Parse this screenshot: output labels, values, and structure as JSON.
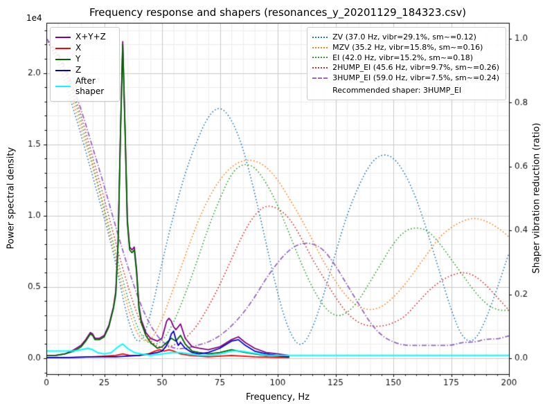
{
  "chart_data": {
    "type": "line",
    "title": "Frequency response and shapers (resonances_y_20201129_184323.csv)",
    "xlabel": "Frequency, Hz",
    "ylabel_left": "Power spectral density",
    "ylabel_right": "Shaper vibration reduction (ratio)",
    "offset_text": "1e4",
    "recommended_text": "Recommended shaper: 3HUMP_EI",
    "legend_position": {
      "psd": "upper left",
      "shapers": "upper right"
    },
    "grid": true,
    "axes": {
      "x": {
        "lim": [
          0,
          200
        ],
        "ticks": [
          0,
          25,
          50,
          75,
          100,
          125,
          150,
          175,
          200
        ],
        "tick_labels": [
          "0",
          "25",
          "50",
          "75",
          "100",
          "125",
          "150",
          "175",
          "200"
        ],
        "minor_step": 5
      },
      "y_left": {
        "lim": [
          -0.112,
          2.352
        ],
        "unit_multiplier": "1e4",
        "ticks": [
          0,
          0.5,
          1,
          1.5,
          2
        ],
        "tick_labels": [
          "0.0",
          "0.5",
          "1.0",
          "1.5",
          "2.0"
        ],
        "minor_step": 0.1
      },
      "y_right": {
        "lim": [
          -0.05,
          1.05
        ],
        "ticks": [
          0,
          0.2,
          0.4,
          0.6,
          0.8,
          1
        ],
        "tick_labels": [
          "0.0",
          "0.2",
          "0.4",
          "0.6",
          "0.8",
          "1.0"
        ]
      }
    },
    "psd_series": [
      {
        "name": "X+Y+Z",
        "color": "#800080",
        "x": [
          0,
          4,
          8,
          12,
          15,
          17,
          19,
          20,
          21,
          23,
          25,
          27,
          29,
          30,
          31,
          32,
          33,
          34,
          35,
          36,
          37,
          38,
          39,
          40,
          41,
          43,
          45,
          48,
          50,
          52,
          53,
          54,
          55,
          56,
          57,
          58,
          60,
          63,
          66,
          70,
          75,
          80,
          83,
          86,
          90,
          95,
          100,
          105
        ],
        "y": [
          0.02,
          0.02,
          0.03,
          0.06,
          0.09,
          0.13,
          0.18,
          0.17,
          0.14,
          0.14,
          0.16,
          0.23,
          0.36,
          0.47,
          0.82,
          1.57,
          2.22,
          1.62,
          0.97,
          0.78,
          0.76,
          0.78,
          0.62,
          0.37,
          0.27,
          0.18,
          0.14,
          0.12,
          0.14,
          0.26,
          0.28,
          0.26,
          0.22,
          0.2,
          0.22,
          0.24,
          0.14,
          0.08,
          0.07,
          0.06,
          0.08,
          0.13,
          0.15,
          0.11,
          0.07,
          0.04,
          0.03,
          0.02
        ]
      },
      {
        "name": "X",
        "color": "#ff0000",
        "x": [
          0,
          10,
          20,
          30,
          33,
          36,
          40,
          44,
          47,
          49,
          51,
          53,
          55,
          58,
          62,
          66,
          70,
          75,
          80,
          85,
          90,
          95,
          100,
          105
        ],
        "y": [
          0.005,
          0.005,
          0.01,
          0.02,
          0.03,
          0.02,
          0.02,
          0.03,
          0.05,
          0.06,
          0.05,
          0.06,
          0.05,
          0.03,
          0.02,
          0.015,
          0.01,
          0.015,
          0.02,
          0.015,
          0.01,
          0.008,
          0.005,
          0.005
        ]
      },
      {
        "name": "Y",
        "color": "#006400",
        "x": [
          0,
          4,
          8,
          12,
          15,
          17,
          19,
          20,
          21,
          23,
          25,
          27,
          29,
          30,
          31,
          32,
          33,
          34,
          35,
          36,
          37,
          38,
          39,
          40,
          41,
          43,
          45,
          48,
          50,
          52,
          54,
          56,
          58,
          60,
          63,
          66,
          70,
          75,
          80,
          83,
          86,
          90,
          95,
          100,
          105
        ],
        "y": [
          0.02,
          0.02,
          0.03,
          0.05,
          0.08,
          0.12,
          0.17,
          0.16,
          0.13,
          0.13,
          0.15,
          0.22,
          0.35,
          0.45,
          0.8,
          1.55,
          2.2,
          1.6,
          0.95,
          0.76,
          0.74,
          0.76,
          0.6,
          0.35,
          0.25,
          0.16,
          0.11,
          0.07,
          0.08,
          0.11,
          0.14,
          0.12,
          0.16,
          0.1,
          0.05,
          0.04,
          0.03,
          0.04,
          0.06,
          0.05,
          0.04,
          0.03,
          0.02,
          0.015,
          0.01
        ]
      },
      {
        "name": "Z",
        "color": "#0000cd",
        "x": [
          0,
          10,
          20,
          30,
          35,
          40,
          45,
          48,
          50,
          52,
          53,
          54,
          55,
          56,
          57,
          58,
          60,
          63,
          66,
          70,
          75,
          80,
          83,
          86,
          90,
          95,
          100,
          105
        ],
        "y": [
          0.005,
          0.005,
          0.01,
          0.01,
          0.015,
          0.02,
          0.03,
          0.04,
          0.05,
          0.09,
          0.12,
          0.17,
          0.19,
          0.13,
          0.09,
          0.11,
          0.07,
          0.04,
          0.03,
          0.04,
          0.07,
          0.12,
          0.13,
          0.09,
          0.05,
          0.03,
          0.02,
          0.01
        ]
      },
      {
        "name": "After shaper",
        "color": "#00ffff",
        "x": [
          0,
          4,
          8,
          12,
          15,
          18,
          20,
          22,
          25,
          28,
          31,
          33,
          35,
          38,
          41,
          45,
          50,
          54,
          58,
          62,
          66,
          70,
          75,
          80,
          84,
          88,
          92,
          96,
          100,
          110,
          120,
          140,
          160,
          180,
          200
        ],
        "y": [
          0.05,
          0.05,
          0.05,
          0.05,
          0.06,
          0.07,
          0.06,
          0.04,
          0.03,
          0.04,
          0.08,
          0.1,
          0.07,
          0.04,
          0.03,
          0.02,
          0.03,
          0.04,
          0.04,
          0.03,
          0.02,
          0.02,
          0.03,
          0.05,
          0.05,
          0.04,
          0.03,
          0.02,
          0.02,
          0.02,
          0.02,
          0.02,
          0.02,
          0.02,
          0.02
        ]
      }
    ],
    "shaper_series": [
      {
        "name": "ZV",
        "freq_hz": 37.0,
        "vibr_pct": 29.1,
        "smoothing": 0.12,
        "label": "ZV (37.0 Hz, vibr=29.1%, sm~=0.12)",
        "color": "#1f77b4",
        "dash": "dotted",
        "x_step": 5,
        "values": [
          1.0,
          0.93,
          0.82,
          0.7,
          0.57,
          0.44,
          0.3,
          0.12,
          0.03,
          0.13,
          0.3,
          0.45,
          0.58,
          0.68,
          0.76,
          0.79,
          0.75,
          0.66,
          0.52,
          0.36,
          0.2,
          0.08,
          0.03,
          0.09,
          0.2,
          0.33,
          0.45,
          0.54,
          0.61,
          0.64,
          0.63,
          0.58,
          0.5,
          0.39,
          0.27,
          0.15,
          0.06,
          0.05,
          0.12,
          0.22,
          0.33
        ]
      },
      {
        "name": "MZV",
        "freq_hz": 35.2,
        "vibr_pct": 15.8,
        "smoothing": 0.16,
        "label": "MZV (35.2 Hz, vibr=15.8%, sm~=0.16)",
        "color": "#ff7f0e",
        "dash": "dotted",
        "x_step": 5,
        "values": [
          1.0,
          0.94,
          0.84,
          0.72,
          0.6,
          0.46,
          0.31,
          0.16,
          0.06,
          0.05,
          0.12,
          0.22,
          0.32,
          0.42,
          0.5,
          0.56,
          0.6,
          0.62,
          0.62,
          0.6,
          0.56,
          0.5,
          0.44,
          0.37,
          0.3,
          0.24,
          0.19,
          0.16,
          0.15,
          0.16,
          0.19,
          0.23,
          0.28,
          0.33,
          0.38,
          0.41,
          0.43,
          0.44,
          0.43,
          0.41,
          0.38
        ]
      },
      {
        "name": "EI",
        "freq_hz": 42.0,
        "vibr_pct": 15.2,
        "smoothing": 0.18,
        "label": "EI (42.0 Hz, vibr=15.2%, sm~=0.18)",
        "color": "#2ca02c",
        "dash": "dotted",
        "x_step": 5,
        "values": [
          1.0,
          0.95,
          0.86,
          0.74,
          0.61,
          0.47,
          0.33,
          0.19,
          0.08,
          0.04,
          0.05,
          0.11,
          0.2,
          0.3,
          0.41,
          0.5,
          0.58,
          0.61,
          0.6,
          0.55,
          0.48,
          0.39,
          0.3,
          0.22,
          0.16,
          0.13,
          0.14,
          0.18,
          0.24,
          0.3,
          0.36,
          0.4,
          0.41,
          0.4,
          0.36,
          0.31,
          0.26,
          0.21,
          0.17,
          0.15,
          0.15
        ]
      },
      {
        "name": "2HUMP_EI",
        "freq_hz": 45.6,
        "vibr_pct": 9.7,
        "smoothing": 0.26,
        "label": "2HUMP_EI (45.6 Hz, vibr=9.7%, sm~=0.26)",
        "color": "#d62728",
        "dash": "dotted",
        "x_step": 5,
        "values": [
          1.0,
          0.95,
          0.87,
          0.76,
          0.63,
          0.5,
          0.36,
          0.23,
          0.12,
          0.05,
          0.03,
          0.04,
          0.06,
          0.1,
          0.16,
          0.23,
          0.31,
          0.39,
          0.45,
          0.48,
          0.47,
          0.44,
          0.38,
          0.31,
          0.25,
          0.19,
          0.14,
          0.11,
          0.1,
          0.1,
          0.11,
          0.13,
          0.17,
          0.21,
          0.24,
          0.26,
          0.27,
          0.26,
          0.23,
          0.19,
          0.15
        ]
      },
      {
        "name": "3HUMP_EI",
        "freq_hz": 59.0,
        "vibr_pct": 7.5,
        "smoothing": 0.24,
        "label": "3HUMP_EI (59.0 Hz, vibr=7.5%, sm~=0.24)",
        "color": "#9467bd",
        "dash": "dashdot",
        "x_step": 5,
        "values": [
          1.0,
          0.96,
          0.88,
          0.78,
          0.66,
          0.54,
          0.41,
          0.29,
          0.18,
          0.1,
          0.05,
          0.03,
          0.03,
          0.04,
          0.05,
          0.07,
          0.1,
          0.14,
          0.19,
          0.25,
          0.3,
          0.34,
          0.36,
          0.36,
          0.34,
          0.29,
          0.23,
          0.17,
          0.11,
          0.07,
          0.05,
          0.04,
          0.04,
          0.04,
          0.04,
          0.04,
          0.05,
          0.05,
          0.06,
          0.06,
          0.07
        ]
      }
    ]
  }
}
